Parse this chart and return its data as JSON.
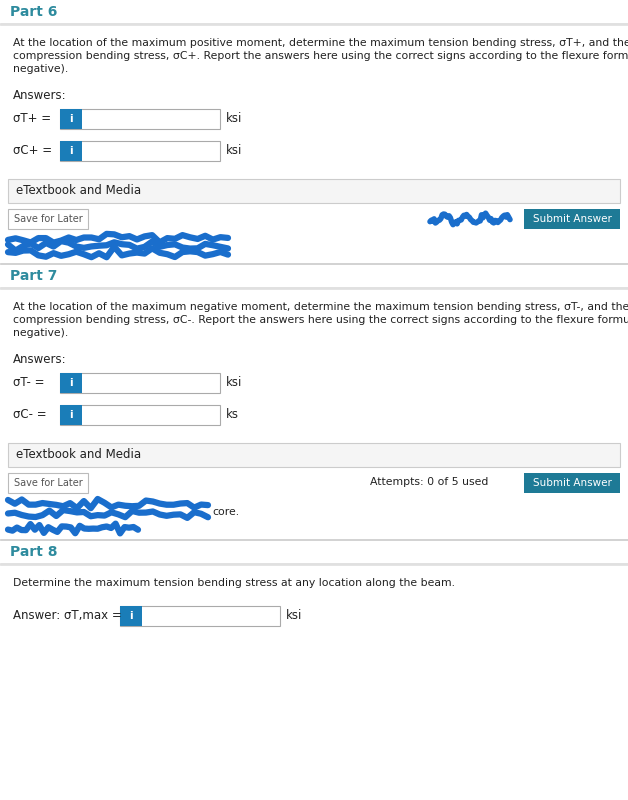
{
  "bg_color": "#ffffff",
  "page_bg": "#f0f0f0",
  "header_bg": "#f8f8f8",
  "teal_text": "#2e8b9e",
  "teal_btn": "#1e7a96",
  "text_dark": "#222222",
  "text_gray": "#444444",
  "input_border": "#aaaaaa",
  "blue_i_btn": "#1a7db8",
  "blue_scribble": "#1a6ecc",
  "etxt_bg": "#f5f5f5",
  "etxt_border": "#cccccc",
  "save_border": "#bbbbbb",
  "part6_header": "Part 6",
  "part7_header": "Part 7",
  "part8_header": "Part 8",
  "answers_label": "Answers:",
  "etextbook_label": "eTextbook and Media",
  "save_later": "Save for Later",
  "submit_answer": "Submit Answer",
  "attempts_text": "Attempts: 0 of 5 used",
  "part8_desc": "Determine the maximum tension bending stress at any location along the beam.",
  "part8_answer_label": "Answer: σT,max =",
  "part8_unit": "ksi",
  "core_text": "core."
}
